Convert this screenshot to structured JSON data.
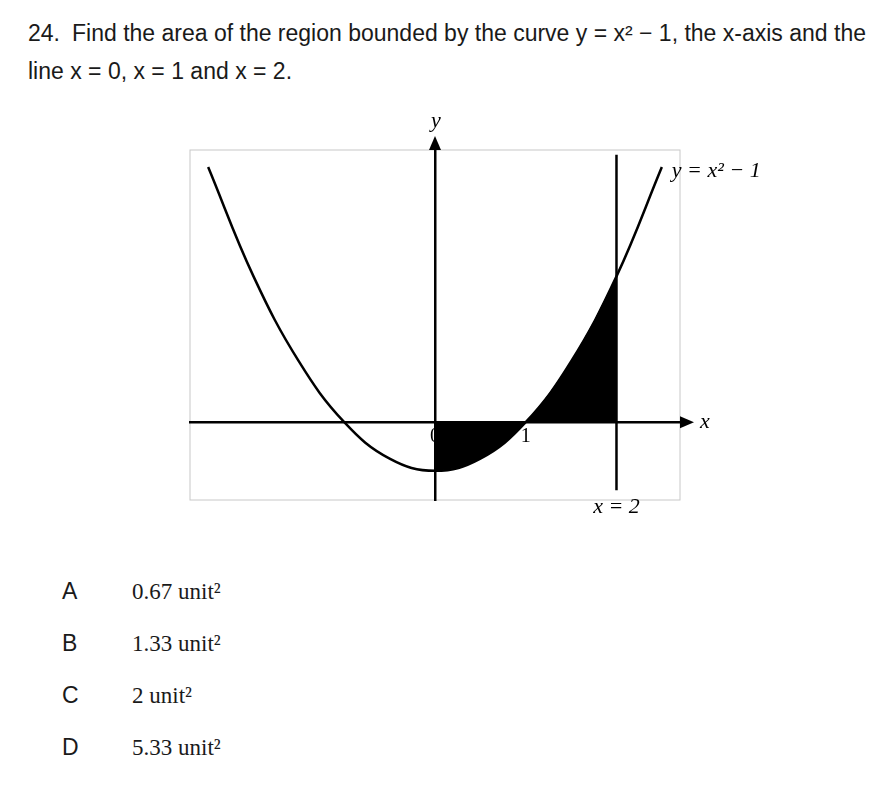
{
  "question": {
    "number": "24.",
    "text": "Find the area of the region bounded by the curve y = x² − 1, the x-axis and the line x = 0, x = 1 and x = 2."
  },
  "chart_data": {
    "type": "line",
    "x_label": "x",
    "y_label": "y",
    "curve": {
      "label": "y = x² − 1",
      "color": "#000000",
      "x": [
        -2.5,
        -2,
        -1.5,
        -1,
        -0.5,
        0,
        0.5,
        1,
        1.5,
        2,
        2.5
      ],
      "values": [
        5.25,
        3,
        1.25,
        0,
        -0.75,
        -1,
        -0.75,
        0,
        1.25,
        3,
        5.25
      ]
    },
    "shaded": {
      "color": "#000000",
      "x": [
        0,
        0.25,
        0.5,
        0.75,
        1,
        1.25,
        1.5,
        1.75,
        2
      ],
      "values": [
        -1,
        -0.9375,
        -0.75,
        -0.4375,
        0,
        0.5625,
        1.25,
        2.0625,
        3
      ]
    },
    "vertical_line": {
      "label": "x = 2",
      "color": "#000000",
      "x": [
        2,
        2
      ],
      "values": [
        -1.4,
        5.5
      ]
    },
    "xlim": [
      -2.7,
      2.7
    ],
    "ylim": [
      -1.6,
      5.6
    ],
    "xticks": [
      0,
      1
    ],
    "yticks": [],
    "tick_labels": "x",
    "grid": false
  },
  "options": [
    {
      "letter": "A",
      "text": "0.67 unit²"
    },
    {
      "letter": "B",
      "text": "1.33 unit²"
    },
    {
      "letter": "C",
      "text": "2 unit²"
    },
    {
      "letter": "D",
      "text": "5.33 unit²"
    }
  ]
}
